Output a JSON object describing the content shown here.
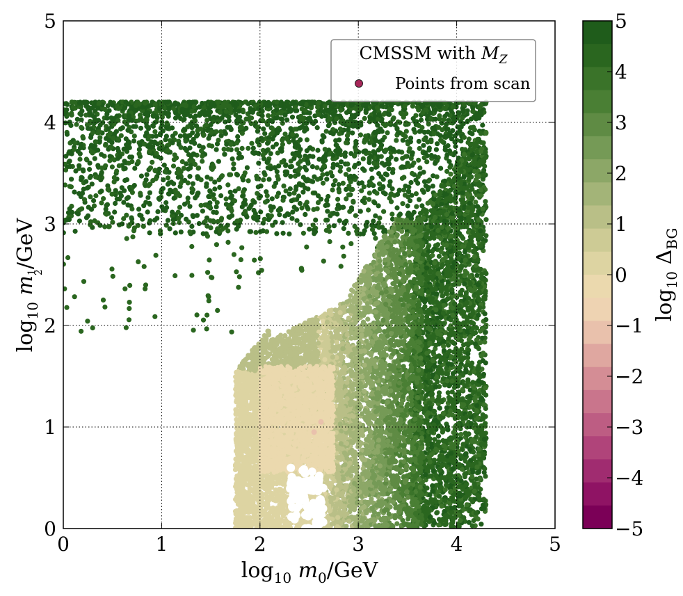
{
  "chart_data": {
    "type": "scatter",
    "title": "",
    "xlabel": {
      "prefix": "log",
      "sub": "10",
      "var": "m",
      "varsub": "0",
      "unit": "/GeV"
    },
    "ylabel": {
      "prefix": "log",
      "sub": "10",
      "var": "m",
      "frac_num": "1",
      "frac_den": "2",
      "unit": "/GeV"
    },
    "xlim": [
      0,
      5
    ],
    "ylim": [
      0,
      5
    ],
    "xticks": [
      "0",
      "1",
      "2",
      "3",
      "4",
      "5"
    ],
    "yticks": [
      "0",
      "1",
      "2",
      "3",
      "4",
      "5"
    ],
    "grid": true,
    "legend": {
      "placement": "top-right",
      "title_text": "CMSSM with ",
      "title_var": "M",
      "title_varsub": "Z",
      "entry": "Points from scan",
      "marker_color": "#a8275a"
    },
    "colorbar": {
      "label": {
        "prefix": "log",
        "sub": "10",
        "symbol": "Δ",
        "symbol_sub": "BG"
      },
      "range": [
        -5,
        5
      ],
      "tick_values": [
        5,
        4,
        3,
        2,
        1,
        0,
        -1,
        -2,
        -3,
        -4,
        -5
      ],
      "tick_labels": [
        "5",
        "4",
        "3",
        "2",
        "1",
        "0",
        "−1",
        "−2",
        "−3",
        "−4",
        "−5"
      ],
      "colors": [
        "#1f5c1b",
        "#2a661f",
        "#3a7329",
        "#4a7f34",
        "#5f8b44",
        "#759a56",
        "#8ca767",
        "#a3b478",
        "#b9bf87",
        "#cdcb95",
        "#ddd4a2",
        "#ebd9ae",
        "#eed3b2",
        "#e9c1ac",
        "#dfa7a0",
        "#d48d95",
        "#c9758c",
        "#bd5d83",
        "#b0447a",
        "#a02c70",
        "#8f1364",
        "#7b0057"
      ]
    },
    "series": [
      {
        "name": "Points from scan",
        "regions": [
          {
            "x": [
              0.0,
              4.3
            ],
            "y": [
              2.9,
              4.2
            ],
            "color_value": 4.5
          },
          {
            "x": [
              1.8,
              3.1
            ],
            "y": [
              0.0,
              1.8
            ],
            "color_value": 0.3
          },
          {
            "x": [
              3.0,
              3.6
            ],
            "y": [
              0.0,
              3.0
            ],
            "color_value": 2.5
          },
          {
            "x": [
              3.6,
              4.3
            ],
            "y": [
              0.0,
              3.8
            ],
            "color_value": 4.2
          }
        ],
        "highlight_points": [
          {
            "x": 2.62,
            "y": 1.05,
            "color_value": -1
          },
          {
            "x": 2.55,
            "y": 0.95,
            "color_value": -1
          }
        ]
      }
    ]
  }
}
